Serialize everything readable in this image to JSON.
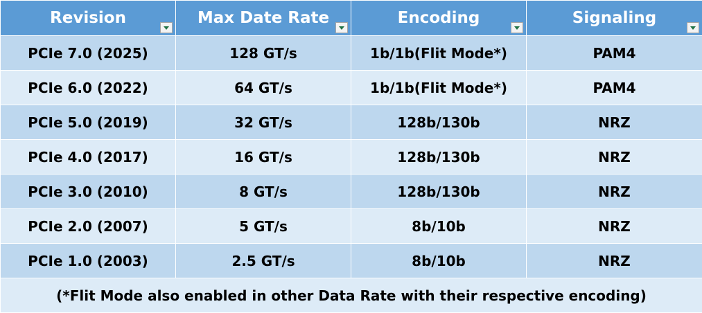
{
  "headers": [
    "Revision",
    "Max Date Rate",
    "Encoding",
    "Signaling"
  ],
  "rows": [
    [
      "PCIe 7.0 (2025)",
      "128 GT/s",
      "1b/1b(Flit Mode*)",
      "PAM4"
    ],
    [
      "PCIe 6.0 (2022)",
      "64 GT/s",
      "1b/1b(Flit Mode*)",
      "PAM4"
    ],
    [
      "PCIe 5.0 (2019)",
      "32 GT/s",
      "128b/130b",
      "NRZ"
    ],
    [
      "PCIe 4.0 (2017)",
      "16 GT/s",
      "128b/130b",
      "NRZ"
    ],
    [
      "PCIe 3.0 (2010)",
      "8 GT/s",
      "128b/130b",
      "NRZ"
    ],
    [
      "PCIe 2.0 (2007)",
      "5 GT/s",
      "8b/10b",
      "NRZ"
    ],
    [
      "PCIe 1.0 (2003)",
      "2.5 GT/s",
      "8b/10b",
      "NRZ"
    ]
  ],
  "footnote": "(*Flit Mode also enabled in other Data Rate with their respective encoding)",
  "colors": {
    "header_bg": "#5b9bd5",
    "row_dark": "#bdd7ee",
    "row_light": "#ddebf7",
    "filter_arrow": "#217346"
  }
}
